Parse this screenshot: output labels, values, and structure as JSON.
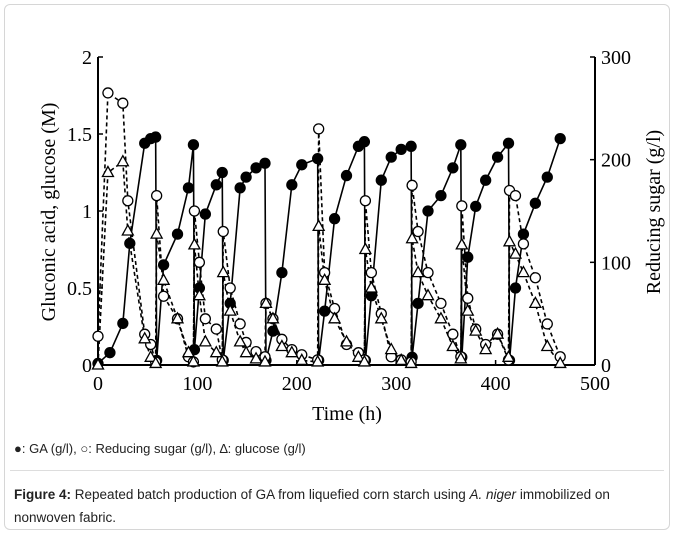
{
  "chart_data": {
    "type": "line",
    "x_label": "Time (h)",
    "y_label": "Gluconic acid, glucose (M)",
    "y2_label": "Reducing sugar (g/l)",
    "xlim": [
      0,
      500
    ],
    "xticks": [
      0,
      100,
      200,
      300,
      400,
      500
    ],
    "ylim": [
      0,
      2
    ],
    "yticks": [
      0,
      0.5,
      1,
      1.5,
      2
    ],
    "y2lim": [
      0,
      300
    ],
    "y2ticks": [
      0,
      100,
      200,
      300
    ],
    "series": [
      {
        "marker": "circle",
        "fill": "#000000",
        "color": "#000000",
        "line_style": "solid",
        "x": [
          0,
          12,
          25,
          32,
          47,
          53,
          58,
          59,
          66,
          80,
          91,
          96,
          97,
          102,
          108,
          119,
          125,
          126,
          133,
          143,
          149,
          159,
          168,
          169,
          176,
          185,
          195,
          205,
          221,
          222,
          228,
          238,
          250,
          262,
          268,
          269,
          275,
          285,
          295,
          305,
          315,
          316,
          322,
          332,
          345,
          357,
          365,
          366,
          372,
          380,
          390,
          402,
          413,
          414,
          420,
          428,
          440,
          452,
          465
        ],
        "values": [
          0.01,
          0.08,
          0.27,
          0.79,
          1.44,
          1.47,
          1.48,
          0.03,
          0.65,
          0.85,
          1.15,
          1.43,
          0.1,
          0.5,
          0.98,
          1.17,
          1.25,
          0.03,
          0.4,
          1.15,
          1.22,
          1.28,
          1.31,
          0.03,
          0.22,
          0.6,
          1.17,
          1.3,
          1.34,
          0.03,
          0.35,
          0.95,
          1.23,
          1.42,
          1.45,
          0.03,
          0.45,
          1.2,
          1.35,
          1.4,
          1.42,
          0.05,
          0.4,
          1.0,
          1.1,
          1.28,
          1.43,
          0.05,
          0.7,
          1.03,
          1.2,
          1.35,
          1.44,
          0.03,
          0.5,
          0.85,
          1.05,
          1.22,
          1.47
        ]
      },
      {
        "marker": "circle",
        "fill": "#ffffff",
        "color": "#000000",
        "line_style": "dashed",
        "axis": "y2",
        "x": [
          0,
          10,
          25,
          30,
          47,
          53,
          58,
          59,
          66,
          80,
          91,
          96,
          97,
          102,
          108,
          119,
          125,
          126,
          133,
          143,
          149,
          159,
          168,
          169,
          176,
          185,
          195,
          205,
          221,
          222,
          228,
          238,
          250,
          262,
          268,
          269,
          275,
          285,
          295,
          305,
          315,
          316,
          322,
          332,
          345,
          357,
          365,
          366,
          372,
          380,
          390,
          402,
          413,
          414,
          420,
          428,
          440,
          452,
          465
        ],
        "values": [
          28,
          265,
          255,
          160,
          30,
          20,
          3,
          165,
          67,
          45,
          8,
          3,
          150,
          100,
          45,
          35,
          5,
          130,
          75,
          40,
          22,
          13,
          8,
          60,
          45,
          25,
          15,
          10,
          5,
          230,
          90,
          55,
          20,
          12,
          5,
          160,
          90,
          50,
          8,
          5,
          3,
          175,
          130,
          90,
          60,
          30,
          8,
          155,
          65,
          35,
          20,
          30,
          5,
          170,
          165,
          118,
          85,
          40,
          8
        ]
      },
      {
        "marker": "triangle",
        "fill": "#ffffff",
        "color": "#000000",
        "line_style": "dashed",
        "x": [
          0,
          10,
          25,
          30,
          47,
          53,
          58,
          59,
          66,
          80,
          91,
          96,
          97,
          102,
          108,
          119,
          125,
          126,
          133,
          143,
          149,
          159,
          168,
          169,
          176,
          185,
          195,
          205,
          221,
          222,
          228,
          238,
          250,
          262,
          268,
          269,
          275,
          285,
          295,
          305,
          315,
          316,
          322,
          332,
          345,
          357,
          365,
          366,
          372,
          380,
          390,
          402,
          413,
          414,
          420,
          428,
          440,
          452,
          465
        ],
        "values": [
          0,
          1.25,
          1.32,
          0.87,
          0.17,
          0.05,
          0.01,
          0.85,
          0.55,
          0.3,
          0.08,
          0.02,
          0.78,
          0.45,
          0.15,
          0.08,
          0.02,
          0.6,
          0.35,
          0.15,
          0.08,
          0.04,
          0.02,
          0.4,
          0.3,
          0.12,
          0.08,
          0.03,
          0.02,
          0.9,
          0.55,
          0.3,
          0.15,
          0.05,
          0.02,
          0.75,
          0.5,
          0.3,
          0.1,
          0.03,
          0.01,
          0.82,
          0.6,
          0.45,
          0.3,
          0.12,
          0.04,
          0.78,
          0.35,
          0.22,
          0.1,
          0.2,
          0.05,
          0.8,
          0.72,
          0.6,
          0.4,
          0.12,
          0.01
        ]
      }
    ]
  },
  "legend_note": "●: GA (g/l), ○: Reducing sugar (g/l), ∆: glucose (g/l)",
  "caption": {
    "label": "Figure 4:",
    "text": "Repeated batch production of GA from liquefied corn starch using",
    "organism": "A. niger",
    "text_end": "immobilized on nonwoven fabric."
  }
}
